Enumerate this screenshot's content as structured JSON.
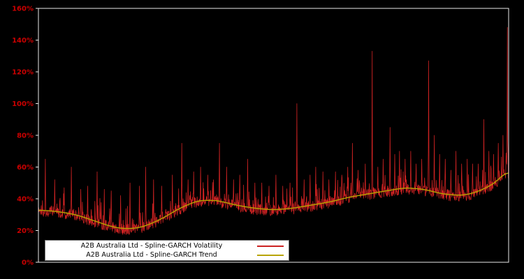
{
  "colors": {
    "background": "#000000",
    "plot_background": "#000000",
    "frame": "#e8e8e8",
    "axis_label": "#cc0000",
    "volatility": "#cc2222",
    "trend": "#b8a400",
    "legend_bg": "#ffffff",
    "legend_text": "#000000"
  },
  "y_axis": {
    "min": 0,
    "max": 160,
    "step": 20,
    "tick_labels": [
      "0%",
      "20%",
      "40%",
      "60%",
      "80%",
      "100%",
      "120%",
      "140%",
      "160%"
    ]
  },
  "x_axis": {
    "tick_labels": []
  },
  "legend": {
    "items": [
      {
        "label": "A2B Australia Ltd - Spline-GARCH Volatility",
        "series": "volatility"
      },
      {
        "label": "A2B Australia Ltd - Spline-GARCH Trend",
        "series": "trend"
      }
    ]
  },
  "chart_data": {
    "type": "line",
    "title": "",
    "xlabel": "",
    "ylabel": "",
    "ylim": [
      0,
      160
    ],
    "grid": false,
    "legend_position": "bottom-left",
    "series": [
      {
        "name": "A2B Australia Ltd - Spline-GARCH Volatility",
        "color": "#cc2222",
        "style": "spiky"
      },
      {
        "name": "A2B Australia Ltd - Spline-GARCH Trend",
        "color": "#b8a400",
        "style": "smooth"
      }
    ],
    "trend_points": [
      [
        0.0,
        33
      ],
      [
        0.04,
        32
      ],
      [
        0.08,
        30
      ],
      [
        0.12,
        26
      ],
      [
        0.16,
        22
      ],
      [
        0.19,
        21
      ],
      [
        0.22,
        22
      ],
      [
        0.26,
        27
      ],
      [
        0.3,
        34
      ],
      [
        0.34,
        39
      ],
      [
        0.38,
        39
      ],
      [
        0.42,
        36
      ],
      [
        0.46,
        34
      ],
      [
        0.5,
        33
      ],
      [
        0.54,
        34
      ],
      [
        0.58,
        36
      ],
      [
        0.62,
        38
      ],
      [
        0.66,
        41
      ],
      [
        0.7,
        43
      ],
      [
        0.74,
        45
      ],
      [
        0.78,
        47
      ],
      [
        0.82,
        46
      ],
      [
        0.86,
        43
      ],
      [
        0.9,
        42
      ],
      [
        0.93,
        44
      ],
      [
        0.96,
        48
      ],
      [
        0.98,
        52
      ],
      [
        1.0,
        60
      ]
    ],
    "volatility_spikes": [
      [
        0.015,
        65
      ],
      [
        0.035,
        52
      ],
      [
        0.055,
        47
      ],
      [
        0.07,
        60
      ],
      [
        0.09,
        46
      ],
      [
        0.105,
        48
      ],
      [
        0.125,
        57
      ],
      [
        0.14,
        46
      ],
      [
        0.155,
        45
      ],
      [
        0.175,
        42
      ],
      [
        0.195,
        50
      ],
      [
        0.215,
        48
      ],
      [
        0.228,
        60
      ],
      [
        0.245,
        52
      ],
      [
        0.262,
        48
      ],
      [
        0.285,
        55
      ],
      [
        0.305,
        75
      ],
      [
        0.318,
        52
      ],
      [
        0.33,
        57
      ],
      [
        0.345,
        60
      ],
      [
        0.36,
        55
      ],
      [
        0.372,
        52
      ],
      [
        0.385,
        75
      ],
      [
        0.4,
        60
      ],
      [
        0.415,
        52
      ],
      [
        0.428,
        55
      ],
      [
        0.445,
        65
      ],
      [
        0.46,
        50
      ],
      [
        0.475,
        50
      ],
      [
        0.49,
        48
      ],
      [
        0.505,
        55
      ],
      [
        0.52,
        48
      ],
      [
        0.535,
        50
      ],
      [
        0.55,
        100
      ],
      [
        0.565,
        52
      ],
      [
        0.578,
        55
      ],
      [
        0.59,
        60
      ],
      [
        0.605,
        57
      ],
      [
        0.618,
        52
      ],
      [
        0.632,
        57
      ],
      [
        0.645,
        55
      ],
      [
        0.658,
        60
      ],
      [
        0.668,
        75
      ],
      [
        0.68,
        58
      ],
      [
        0.695,
        62
      ],
      [
        0.71,
        133
      ],
      [
        0.722,
        60
      ],
      [
        0.733,
        65
      ],
      [
        0.748,
        85
      ],
      [
        0.758,
        68
      ],
      [
        0.768,
        70
      ],
      [
        0.78,
        65
      ],
      [
        0.792,
        70
      ],
      [
        0.803,
        62
      ],
      [
        0.815,
        65
      ],
      [
        0.83,
        127
      ],
      [
        0.842,
        80
      ],
      [
        0.853,
        68
      ],
      [
        0.865,
        65
      ],
      [
        0.877,
        58
      ],
      [
        0.888,
        70
      ],
      [
        0.9,
        62
      ],
      [
        0.912,
        65
      ],
      [
        0.923,
        62
      ],
      [
        0.935,
        62
      ],
      [
        0.947,
        90
      ],
      [
        0.958,
        70
      ],
      [
        0.968,
        68
      ],
      [
        0.978,
        75
      ],
      [
        0.988,
        80
      ],
      [
        0.997,
        148
      ]
    ],
    "noise": {
      "seed": 1337,
      "n_points": 1500,
      "dip": 4,
      "band": 7,
      "burst_prob": 0.14,
      "burst_amp": 13,
      "min_value": 14
    }
  }
}
